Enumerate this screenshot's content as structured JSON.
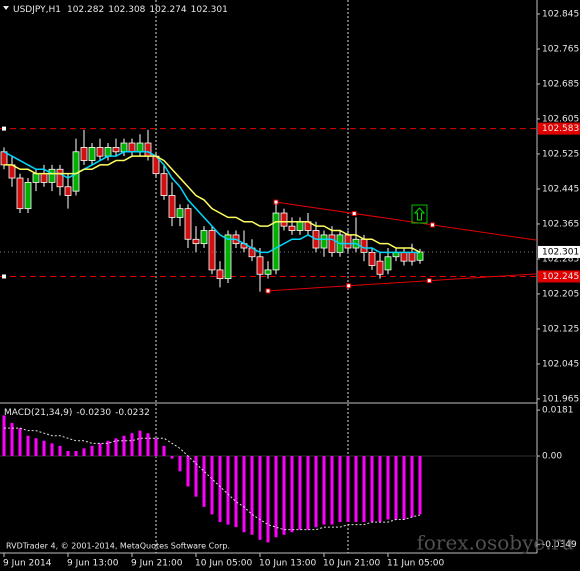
{
  "chart_data": {
    "type": "candlestick",
    "title": "USDJPY,H1",
    "ylim": [
      101.958,
      102.877
    ],
    "yticks": [
      102.845,
      102.765,
      102.685,
      102.605,
      102.525,
      102.445,
      102.365,
      102.285,
      102.205,
      102.125,
      102.045,
      101.965
    ],
    "xticks": [
      {
        "value": 0,
        "label": "9 Jun 2014"
      },
      {
        "value": 8,
        "label": "9 Jun 13:00"
      },
      {
        "value": 16,
        "label": "9 Jun 21:00"
      },
      {
        "value": 24,
        "label": "10 Jun 05:00"
      },
      {
        "value": 32,
        "label": "10 Jun 13:00"
      },
      {
        "value": 40,
        "label": "10 Jun 21:00"
      },
      {
        "value": 48,
        "label": "11 Jun 05:00"
      }
    ],
    "separators": [
      19,
      43
    ],
    "candles": {
      "up_color": "#00b000",
      "down_color": "#d01010",
      "open": [
        102.53,
        102.5,
        102.47,
        102.4,
        102.46,
        102.48,
        102.46,
        102.49,
        102.45,
        102.44,
        102.54,
        102.51,
        102.54,
        102.52,
        102.54,
        102.53,
        102.55,
        102.53,
        102.55,
        102.52,
        102.48,
        102.43,
        102.38,
        102.4,
        102.33,
        102.32,
        102.35,
        102.26,
        102.24,
        102.34,
        102.32,
        102.31,
        102.29,
        102.25,
        102.26,
        102.39,
        102.36,
        102.35,
        102.37,
        102.35,
        102.31,
        102.34,
        102.3,
        102.34,
        102.31,
        102.33,
        102.3,
        102.28,
        102.26,
        102.29,
        102.3,
        102.3,
        102.282
      ],
      "high": [
        102.54,
        102.52,
        102.48,
        102.47,
        102.49,
        102.5,
        102.5,
        102.5,
        102.48,
        102.56,
        102.58,
        102.55,
        102.56,
        102.55,
        102.56,
        102.56,
        102.56,
        102.57,
        102.58,
        102.53,
        102.5,
        102.46,
        102.41,
        102.41,
        102.36,
        102.36,
        102.36,
        102.28,
        102.35,
        102.35,
        102.35,
        102.33,
        102.31,
        102.28,
        102.41,
        102.4,
        102.38,
        102.38,
        102.39,
        102.37,
        102.35,
        102.36,
        102.35,
        102.35,
        102.38,
        102.34,
        102.31,
        102.3,
        102.31,
        102.31,
        102.31,
        102.32,
        102.308
      ],
      "low": [
        102.49,
        102.45,
        102.39,
        102.39,
        102.44,
        102.45,
        102.44,
        102.43,
        102.4,
        102.43,
        102.5,
        102.5,
        102.51,
        102.51,
        102.52,
        102.52,
        102.52,
        102.52,
        102.51,
        102.47,
        102.42,
        102.36,
        102.36,
        102.31,
        102.3,
        102.31,
        102.25,
        102.22,
        102.23,
        102.31,
        102.3,
        102.28,
        102.21,
        102.24,
        102.25,
        102.35,
        102.34,
        102.34,
        102.34,
        102.3,
        102.29,
        102.29,
        102.29,
        102.3,
        102.3,
        102.28,
        102.26,
        102.24,
        102.25,
        102.28,
        102.27,
        102.27,
        102.274
      ],
      "close": [
        102.5,
        102.47,
        102.4,
        102.46,
        102.48,
        102.46,
        102.49,
        102.45,
        102.43,
        102.53,
        102.51,
        102.54,
        102.52,
        102.54,
        102.53,
        102.55,
        102.53,
        102.55,
        102.52,
        102.48,
        102.43,
        102.38,
        102.4,
        102.33,
        102.32,
        102.35,
        102.26,
        102.24,
        102.34,
        102.32,
        102.31,
        102.29,
        102.25,
        102.26,
        102.39,
        102.36,
        102.35,
        102.37,
        102.35,
        102.31,
        102.34,
        102.3,
        102.34,
        102.31,
        102.33,
        102.3,
        102.27,
        102.25,
        102.29,
        102.3,
        102.28,
        102.28,
        102.301
      ]
    },
    "series": [
      {
        "color": "#00d8ff",
        "values": [
          102.53,
          102.52,
          102.51,
          102.5,
          102.49,
          102.49,
          102.48,
          102.48,
          102.47,
          102.48,
          102.49,
          102.5,
          102.51,
          102.52,
          102.52,
          102.53,
          102.53,
          102.53,
          102.53,
          102.52,
          102.5,
          102.47,
          102.45,
          102.42,
          102.4,
          102.38,
          102.36,
          102.34,
          102.33,
          102.33,
          102.32,
          102.31,
          102.3,
          102.3,
          102.31,
          102.32,
          102.33,
          102.33,
          102.34,
          102.33,
          102.33,
          102.33,
          102.32,
          102.32,
          102.32,
          102.31,
          102.31,
          102.3,
          102.3,
          102.3,
          102.3,
          102.3,
          102.3
        ]
      },
      {
        "color": "#ffff60",
        "values": [
          102.5,
          102.5,
          102.49,
          102.49,
          102.48,
          102.48,
          102.48,
          102.48,
          102.48,
          102.48,
          102.49,
          102.49,
          102.5,
          102.5,
          102.51,
          102.51,
          102.52,
          102.52,
          102.52,
          102.52,
          102.51,
          102.49,
          102.47,
          102.45,
          102.43,
          102.42,
          102.4,
          102.39,
          102.38,
          102.38,
          102.37,
          102.37,
          102.36,
          102.36,
          102.37,
          102.37,
          102.37,
          102.37,
          102.37,
          102.36,
          102.36,
          102.35,
          102.35,
          102.34,
          102.34,
          102.33,
          102.33,
          102.32,
          102.32,
          102.31,
          102.31,
          102.31,
          102.3
        ]
      }
    ],
    "levels": [
      {
        "value": 102.583,
        "color": "#e00000"
      },
      {
        "value": 102.245,
        "color": "#e00000"
      }
    ],
    "trendlines": [
      {
        "color": "#e00000",
        "x": [
          34,
          66.6
        ],
        "y": [
          102.415,
          102.328
        ]
      },
      {
        "color": "#e00000",
        "x": [
          33,
          66.6
        ],
        "y": [
          102.212,
          102.251
        ]
      }
    ],
    "indicator": {
      "title": "MACD(21,34,9)",
      "value_labels": [
        "-0.0230",
        "-0.0232"
      ],
      "y2lim": [
        -0.037,
        0.0201
      ],
      "y2ticks": [
        0.0181,
        {
          "value": 0,
          "label": "0.00"
        },
        -0.0349
      ],
      "histogram": {
        "color": "#ff00ff",
        "values": [
          0.016,
          0.013,
          0.011,
          0.008,
          0.007,
          0.006,
          0.005,
          0.004,
          0.002,
          0.002,
          0.003,
          0.004,
          0.005,
          0.006,
          0.007,
          0.008,
          0.009,
          0.01,
          0.009,
          0.007,
          0.004,
          -0.001,
          -0.006,
          -0.012,
          -0.016,
          -0.02,
          -0.023,
          -0.026,
          -0.027,
          -0.028,
          -0.03,
          -0.031,
          -0.033,
          -0.034,
          -0.032,
          -0.031,
          -0.03,
          -0.029,
          -0.029,
          -0.028,
          -0.027,
          -0.027,
          -0.026,
          -0.026,
          -0.026,
          -0.026,
          -0.026,
          -0.026,
          -0.025,
          -0.025,
          -0.025,
          -0.024,
          -0.023
        ]
      },
      "signal": {
        "color": "#e0e0e0",
        "values": [
          0.011,
          0.011,
          0.011,
          0.01,
          0.01,
          0.009,
          0.008,
          0.008,
          0.007,
          0.006,
          0.006,
          0.005,
          0.005,
          0.005,
          0.006,
          0.006,
          0.006,
          0.007,
          0.007,
          0.007,
          0.007,
          0.005,
          0.003,
          0.0,
          -0.003,
          -0.006,
          -0.009,
          -0.012,
          -0.015,
          -0.018,
          -0.02,
          -0.023,
          -0.025,
          -0.027,
          -0.028,
          -0.029,
          -0.029,
          -0.029,
          -0.029,
          -0.029,
          -0.028,
          -0.028,
          -0.028,
          -0.027,
          -0.027,
          -0.027,
          -0.026,
          -0.026,
          -0.026,
          -0.025,
          -0.025,
          -0.024,
          -0.0232
        ]
      }
    },
    "copyright": "RVDTrader 4, © 2001-2014, MetaQuotes Software Corp.",
    "watermark": "forex.osobye.ru"
  }
}
